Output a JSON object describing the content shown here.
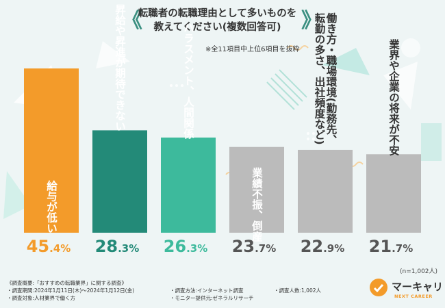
{
  "title_lines": [
    "転職者の転職理由として多いものを",
    "教えてください(複数回答可)"
  ],
  "top_note": "※全11項目中上位6項目を抜粋",
  "n_note": "(n=1,002人)",
  "footer": {
    "col1": [
      "《調査概要:「おすすめの転職業界」に関する調査》",
      "・調査期間:2024年1月11日(木)〜2024年1月12日(金)",
      "・調査対象:人材業界で働く方"
    ],
    "col2": [
      "・調査方法:インターネット調査",
      "・モニター提供元:ゼネラルリサーチ"
    ],
    "col3": [
      "・調査人数:1,002人"
    ]
  },
  "logo": {
    "text": "マーキャリ",
    "sub": "NEXT CAREER"
  },
  "colors": {
    "orange": "#f39b2a",
    "dark_green": "#238a78",
    "mid_green": "#3dba9c",
    "gray": "#bbbbbb"
  },
  "chart_data": {
    "type": "bar",
    "title": "転職者の転職理由として多いものを教えてください(複数回答可)",
    "categories": [
      "給与が低い",
      "昇給や昇進が期待できない",
      "ハラスメント、人間関係",
      "業績不振、倒産",
      "働き方・職場環境(勤務先、転勤の多さ、出社頻度など)",
      "業界や企業の将来が不安"
    ],
    "label_lines": [
      [
        "給与が低い"
      ],
      [
        "昇給や昇進が期待できない"
      ],
      [
        "ハラスメント、人間関係"
      ],
      [
        "業績不振、倒産"
      ],
      [
        "働き方・職場環境(勤務先、",
        "転勤の多さ、出社頻度など)"
      ],
      [
        "業界や企業の将来が不安"
      ]
    ],
    "values": [
      45.4,
      28.3,
      26.3,
      23.7,
      22.9,
      21.7
    ],
    "value_labels": [
      [
        "45",
        ".4%"
      ],
      [
        "28",
        ".3%"
      ],
      [
        "26",
        ".3%"
      ],
      [
        "23",
        ".7%"
      ],
      [
        "22",
        ".9%"
      ],
      [
        "21",
        ".7%"
      ]
    ],
    "bar_colors": [
      "#f39b2a",
      "#238a78",
      "#3dba9c",
      "#bbbbbb",
      "#bbbbbb",
      "#bbbbbb"
    ],
    "label_colors": [
      "#ffffff",
      "#ffffff",
      "#ffffff",
      "#ffffff",
      "#333333",
      "#333333"
    ],
    "label_inside": [
      true,
      false,
      false,
      true,
      false,
      false
    ],
    "value_colors": [
      "#f39b2a",
      "#238a78",
      "#3dba9c",
      "#555555",
      "#555555",
      "#555555"
    ],
    "unit": "%",
    "ylim": [
      0,
      45.4
    ]
  }
}
